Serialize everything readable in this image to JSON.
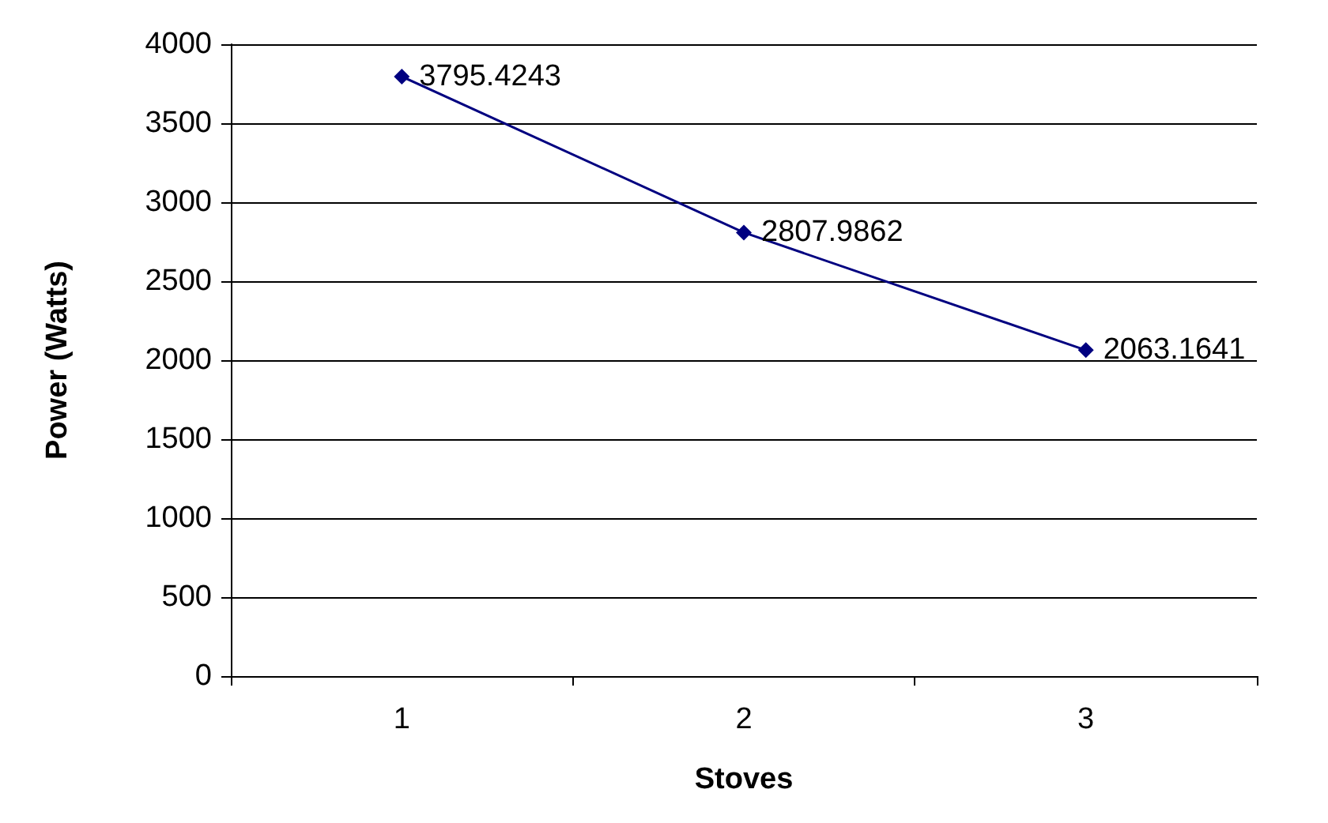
{
  "chart_data": {
    "type": "line",
    "xlabel": "Stoves",
    "ylabel": "Power (Watts)",
    "categories": [
      "1",
      "2",
      "3"
    ],
    "series": [
      {
        "color": "#000080",
        "values": [
          3795.4243,
          2807.9862,
          2063.1641
        ]
      }
    ],
    "ylim": [
      0,
      4000
    ],
    "yticks": [
      0,
      500,
      1000,
      1500,
      2000,
      2500,
      3000,
      3500,
      4000
    ],
    "grid": "y",
    "marker": "diamond",
    "line_style": "solid",
    "data_labels": true
  }
}
